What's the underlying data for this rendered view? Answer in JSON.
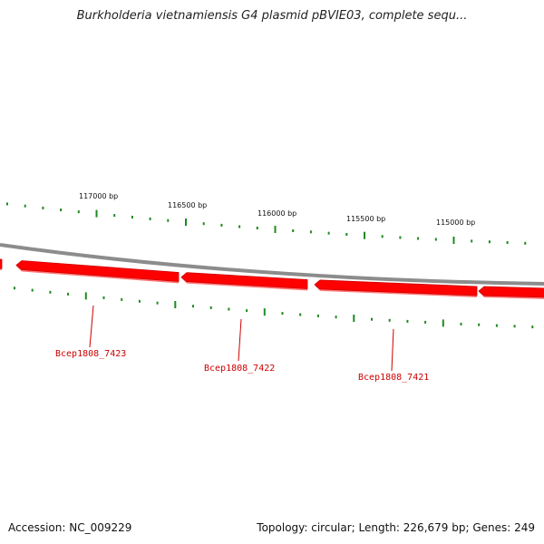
{
  "title": "Burkholderia vietnamiensis G4 plasmid pBVIE03, complete sequ...",
  "footer": {
    "accession": "Accession: NC_009229",
    "summary": "Topology: circular; Length: 226,679 bp; Genes: 249"
  },
  "colors": {
    "gene": "#ff0000",
    "gene_dark": "#cc0000",
    "gene_shadow": "#ff7a7a",
    "tick": "#1f8a1f",
    "backbone": "#8c8c8c",
    "gene_label": "#cc0000"
  },
  "scale_labels": [
    {
      "id": "bp117000",
      "text": "117000 bp"
    },
    {
      "id": "bp116500",
      "text": "116500 bp"
    },
    {
      "id": "bp116000",
      "text": "116000 bp"
    },
    {
      "id": "bp115500",
      "text": "115500 bp"
    },
    {
      "id": "bp115000",
      "text": "115000 bp"
    }
  ],
  "genes": [
    {
      "id": "g7423",
      "name": "Bcep1808_7423"
    },
    {
      "id": "g7422",
      "name": "Bcep1808_7422"
    },
    {
      "id": "g7421",
      "name": "Bcep1808_7421"
    }
  ]
}
